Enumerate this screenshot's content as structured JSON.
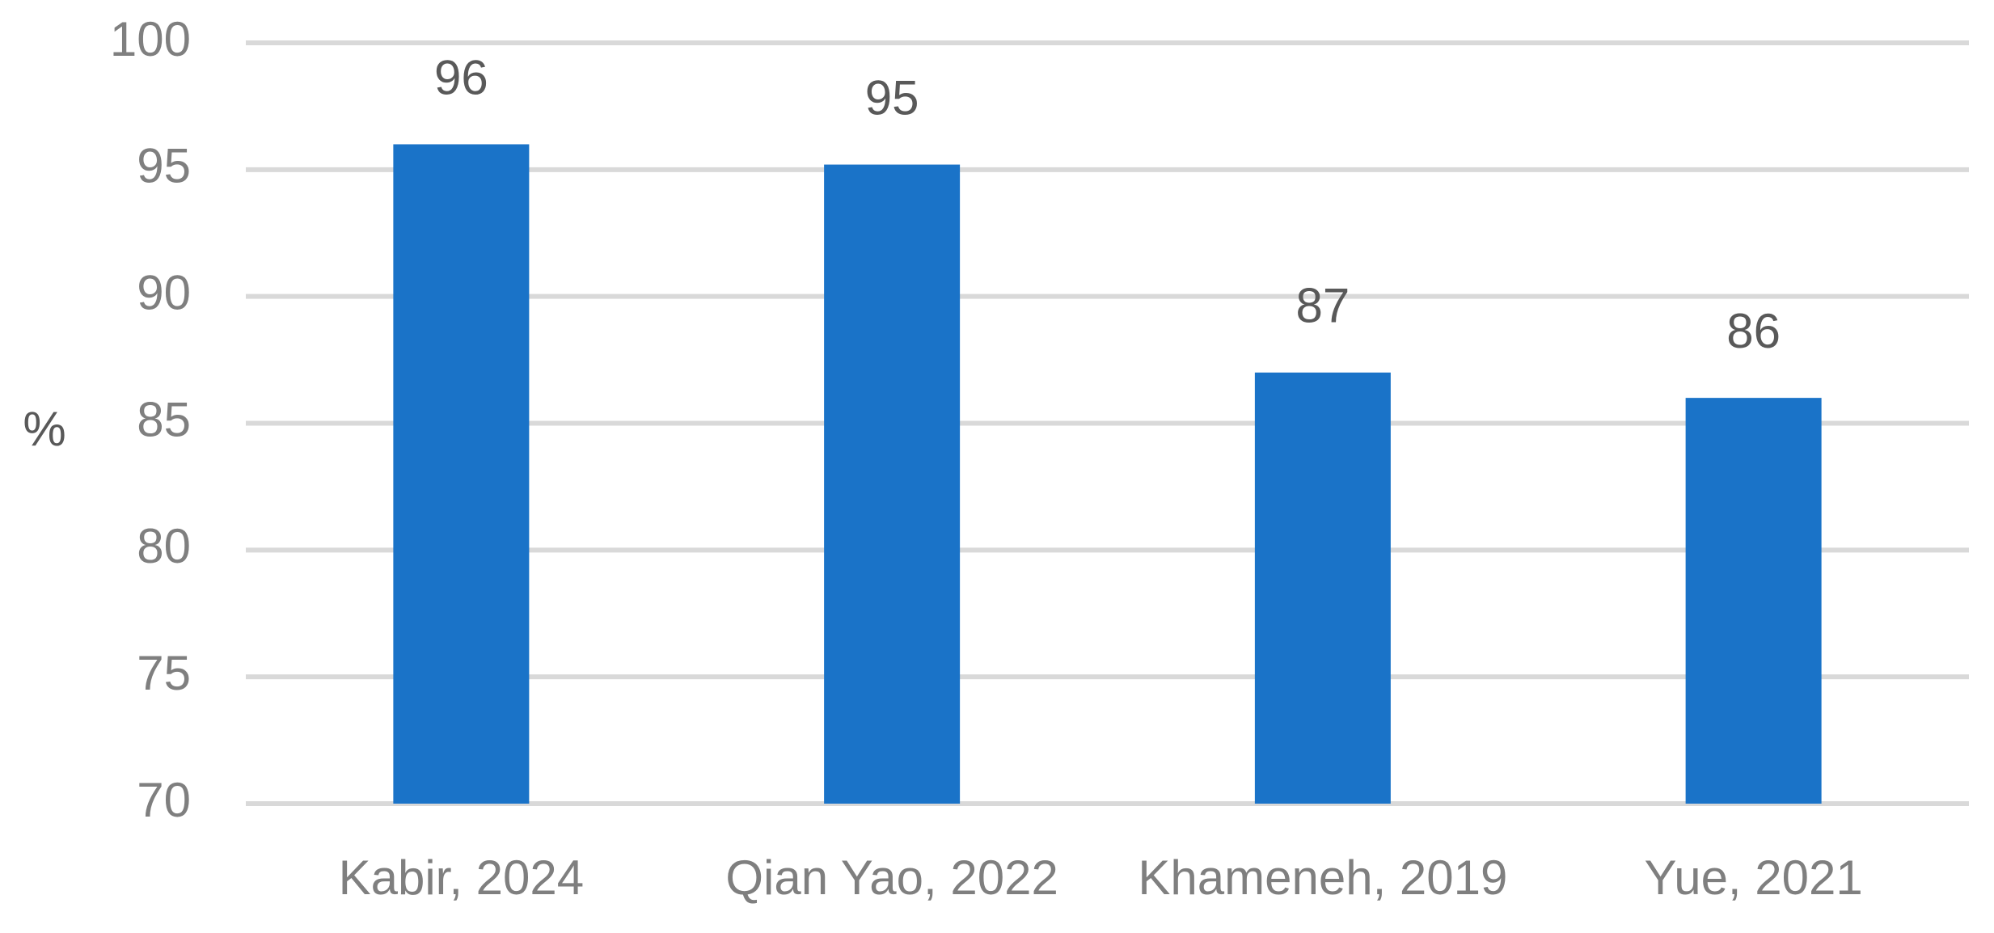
{
  "chart_data": {
    "type": "bar",
    "ylabel": "%",
    "categories": [
      "Kabir, 2024",
      "Qian Yao, 2022",
      "Khameneh, 2019",
      "Yue, 2021"
    ],
    "values": [
      96,
      95.2,
      87,
      86
    ],
    "value_labels": [
      "96",
      "95",
      "87",
      "86"
    ],
    "color": "#1a73c8",
    "ylim": [
      70,
      100
    ],
    "yticks": [
      70,
      75,
      80,
      85,
      90,
      95,
      100
    ],
    "grid": true
  }
}
